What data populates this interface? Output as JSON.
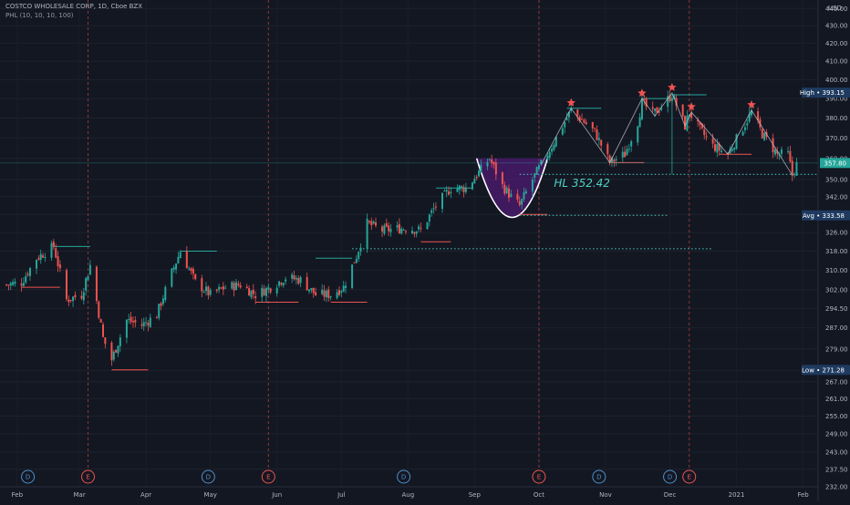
{
  "header": {
    "symbol_line": "COSTCO WHOLESALE CORP, 1D, Cboe BZX",
    "indicator_line": "PHL (10, 10, 10, 100)"
  },
  "price_scale": {
    "currency": "USD",
    "ticks": [
      "440.00",
      "430.00",
      "420.00",
      "410.00",
      "400.00",
      "390.00",
      "380.00",
      "370.00",
      "360.00",
      "350.00",
      "342.00",
      "334.00",
      "326.00",
      "318.00",
      "310.00",
      "302.00",
      "294.50",
      "287.00",
      "279.00",
      "271.00",
      "267.00",
      "261.00",
      "255.00",
      "249.00",
      "243.00",
      "237.50",
      "232.00"
    ]
  },
  "markers": {
    "high": {
      "label": "High",
      "value": "393.15"
    },
    "current": {
      "value": "357.80"
    },
    "avg": {
      "label": "Avg",
      "value": "333.58"
    },
    "low": {
      "label": "Low",
      "value": "271.28"
    }
  },
  "time_axis": [
    "Feb",
    "Mar",
    "Apr",
    "May",
    "Jun",
    "Jul",
    "Aug",
    "Sep",
    "Oct",
    "Nov",
    "Dec",
    "2021",
    "Feb"
  ],
  "annotation": {
    "text": "HL 352.42"
  },
  "events": [
    {
      "type": "D",
      "label": "D",
      "date": "Feb"
    },
    {
      "type": "E",
      "label": "E",
      "date": "Mar"
    },
    {
      "type": "D",
      "label": "D",
      "date": "May"
    },
    {
      "type": "E",
      "label": "E",
      "date": "May-end"
    },
    {
      "type": "D",
      "label": "D",
      "date": "Aug"
    },
    {
      "type": "E",
      "label": "E",
      "date": "Sep-end"
    },
    {
      "type": "D",
      "label": "D",
      "date": "Oct-end"
    },
    {
      "type": "D",
      "label": "D",
      "date": "Nov-end"
    },
    {
      "type": "E",
      "label": "E",
      "date": "Dec"
    }
  ],
  "colors": {
    "background": "#131722",
    "up": "#26a69a",
    "down": "#ef5350",
    "scale_text": "#b2b5be",
    "pivot_high": "#26a69a",
    "pivot_low": "#ef5350",
    "cup": "#6a1b9a",
    "star": "#ef5350",
    "dotted": "#4dd0c4",
    "label_bg": "#1e3a5f",
    "current_bg": "#26a69a"
  },
  "chart_data": {
    "type": "candlestick",
    "title": "COSTCO WHOLESALE CORP, 1D, Cboe BZX",
    "ylim": [
      232,
      445
    ],
    "y_scale": "log",
    "x_range": [
      "2020-01-24",
      "2021-02-08"
    ],
    "path_points": [
      [
        "2020-01-27",
        304
      ],
      [
        "2020-02-03",
        305
      ],
      [
        "2020-02-10",
        315
      ],
      [
        "2020-02-18",
        320
      ],
      [
        "2020-02-24",
        298
      ],
      [
        "2020-03-02",
        300
      ],
      [
        "2020-03-06",
        312
      ],
      [
        "2020-03-12",
        283
      ],
      [
        "2020-03-16",
        275
      ],
      [
        "2020-03-23",
        290
      ],
      [
        "2020-03-30",
        288
      ],
      [
        "2020-04-06",
        292
      ],
      [
        "2020-04-13",
        309
      ],
      [
        "2020-04-17",
        318
      ],
      [
        "2020-04-24",
        305
      ],
      [
        "2020-05-01",
        300
      ],
      [
        "2020-05-08",
        303
      ],
      [
        "2020-05-15",
        304
      ],
      [
        "2020-05-22",
        300
      ],
      [
        "2020-05-29",
        303
      ],
      [
        "2020-06-05",
        307
      ],
      [
        "2020-06-12",
        306
      ],
      [
        "2020-06-19",
        300
      ],
      [
        "2020-06-26",
        300
      ],
      [
        "2020-07-02",
        303
      ],
      [
        "2020-07-08",
        316
      ],
      [
        "2020-07-13",
        330
      ],
      [
        "2020-07-20",
        327
      ],
      [
        "2020-07-31",
        328
      ],
      [
        "2020-08-07",
        327
      ],
      [
        "2020-08-14",
        338
      ],
      [
        "2020-08-21",
        346
      ],
      [
        "2020-08-28",
        346
      ],
      [
        "2020-09-02",
        352
      ],
      [
        "2020-09-08",
        360
      ],
      [
        "2020-09-14",
        347
      ],
      [
        "2020-09-18",
        342
      ],
      [
        "2020-09-22",
        338
      ],
      [
        "2020-09-28",
        350
      ],
      [
        "2020-10-02",
        357
      ],
      [
        "2020-10-07",
        366
      ],
      [
        "2020-10-12",
        376
      ],
      [
        "2020-10-16",
        384
      ],
      [
        "2020-10-20",
        380
      ],
      [
        "2020-10-27",
        373
      ],
      [
        "2020-11-03",
        358
      ],
      [
        "2020-11-10",
        362
      ],
      [
        "2020-11-16",
        378
      ],
      [
        "2020-11-18",
        388
      ],
      [
        "2020-11-23",
        382
      ],
      [
        "2020-11-27",
        386
      ],
      [
        "2020-12-02",
        392
      ],
      [
        "2020-12-08",
        376
      ],
      [
        "2020-12-10",
        383
      ],
      [
        "2020-12-15",
        374
      ],
      [
        "2020-12-21",
        366
      ],
      [
        "2020-12-28",
        362
      ],
      [
        "2021-01-04",
        375
      ],
      [
        "2021-01-08",
        383
      ],
      [
        "2021-01-13",
        372
      ],
      [
        "2021-01-20",
        362
      ],
      [
        "2021-01-25",
        362
      ],
      [
        "2021-01-27",
        352
      ],
      [
        "2021-01-29",
        357
      ]
    ],
    "swing_stars": [
      [
        "2020-10-16",
        385
      ],
      [
        "2020-11-18",
        390
      ],
      [
        "2020-12-02",
        393
      ],
      [
        "2020-12-11",
        383
      ],
      [
        "2021-01-08",
        384
      ]
    ],
    "pivot_high_levels": [
      {
        "from": "2020-02-18",
        "to": "2020-03-06",
        "value": 320
      },
      {
        "from": "2020-04-17",
        "to": "2020-05-04",
        "value": 318
      },
      {
        "from": "2020-06-19",
        "to": "2020-07-06",
        "value": 315
      },
      {
        "from": "2020-08-14",
        "to": "2020-08-31",
        "value": 346
      },
      {
        "from": "2020-10-14",
        "to": "2020-10-30",
        "value": 385
      },
      {
        "from": "2020-11-18",
        "to": "2020-12-04",
        "value": 390
      },
      {
        "from": "2020-12-02",
        "to": "2020-12-18",
        "value": 392
      }
    ],
    "pivot_low_levels": [
      {
        "from": "2020-02-03",
        "to": "2020-02-21",
        "value": 303
      },
      {
        "from": "2020-03-16",
        "to": "2020-04-02",
        "value": 271.28
      },
      {
        "from": "2020-05-22",
        "to": "2020-06-11",
        "value": 297
      },
      {
        "from": "2020-06-26",
        "to": "2020-07-13",
        "value": 297
      },
      {
        "from": "2020-08-07",
        "to": "2020-08-21",
        "value": 322
      },
      {
        "from": "2020-09-22",
        "to": "2020-10-05",
        "value": 334
      },
      {
        "from": "2020-11-03",
        "to": "2020-11-19",
        "value": 358
      },
      {
        "from": "2020-12-24",
        "to": "2021-01-08",
        "value": 362
      }
    ],
    "dotted_levels": [
      {
        "from": "2020-09-22",
        "to": "2021-02-08",
        "value": 352.42
      },
      {
        "from": "2020-09-22",
        "to": "2020-11-30",
        "value": 333.58
      },
      {
        "from": "2020-07-06",
        "to": "2020-12-21",
        "value": 319
      }
    ],
    "cup": {
      "from": "2020-09-02",
      "to": "2020-10-05",
      "top": 360,
      "bottom": 332
    },
    "earnings_dates": [
      "2020-03-05",
      "2020-05-28",
      "2020-10-01",
      "2020-12-10"
    ],
    "dividend_dates": [
      "2020-02-06",
      "2020-04-30",
      "2020-07-30",
      "2020-10-29",
      "2020-12-01"
    ],
    "high": 393.15,
    "low": 271.28,
    "average": 333.58,
    "last": 357.8
  }
}
